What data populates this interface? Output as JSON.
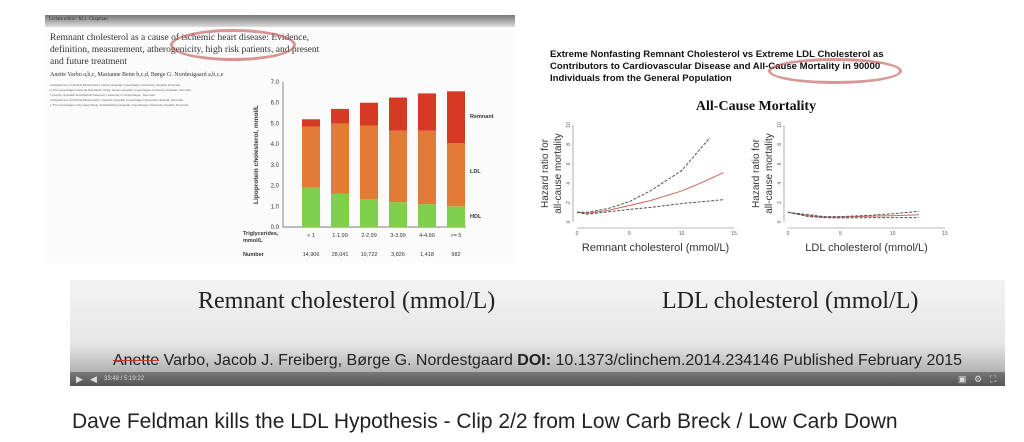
{
  "left_slide": {
    "editor": "Lictate editor: M.J. Chapman",
    "title_lines": [
      "Remnant cholesterol as a cause of ischemic heart disease: Evidence,",
      "definition, measurement, atherogenicity, high risk patients, and present",
      "and future treatment"
    ],
    "authors": "Anette Varbo a,b,c, Marianne Benn b,c,d, Børge G. Nordestgaard a,b,c,e",
    "affiliations": [
      "a Department of Clinical Biochemistry, Herlev Hospital, Copenhagen University Hospital, Denmark",
      "b The Copenhagen General Population Study, Herlev Hospital, Copenhagen University Hospital, Denmark",
      "c Faculty of Health and Medical Sciences, University of Copenhagen, Denmark",
      "d Department of Clinical Biochemistry, Gentofte Hospital, Copenhagen University Hospital, Denmark",
      "e The Copenhagen City Heart Study, Frederiksberg Hospital, Copenhagen University Hospital, Denmark"
    ],
    "highlight_color": "#c0504d"
  },
  "right_slide": {
    "title_lines": [
      "Extreme Nonfasting Remnant Cholesterol vs Extreme LDL Cholesterol as",
      "Contributors to Cardiovascular Disease and All-Cause Mortality in 90000",
      "Individuals from the General Population"
    ],
    "subtitle": "All-Cause Mortality"
  },
  "chart_data": [
    {
      "type": "bar",
      "stacked": true,
      "categories": [
        "< 1",
        "1-1.99",
        "2-2.99",
        "3-3.99",
        "4-4.99",
        ">= 5"
      ],
      "category_label": "Triglycerides, mmol/L",
      "counts_label": "Number",
      "counts": [
        "14,906",
        "28,041",
        "10,722",
        "3,826",
        "1,418",
        "982"
      ],
      "ylabel": "Lipoprotein cholesterol, mmol/L",
      "ylim": [
        0,
        7
      ],
      "yticks": [
        "0.0",
        "1.0",
        "2.0",
        "3.0",
        "4.0",
        "5.0",
        "6.0",
        "7.0"
      ],
      "series": [
        {
          "name": "HDL",
          "color": "#7ed04b",
          "values": [
            1.9,
            1.6,
            1.35,
            1.2,
            1.1,
            1.0
          ]
        },
        {
          "name": "LDL",
          "color": "#e27b35",
          "values": [
            2.95,
            3.4,
            3.55,
            3.45,
            3.55,
            3.05
          ]
        },
        {
          "name": "Remnant",
          "color": "#d63a24",
          "values": [
            0.35,
            0.7,
            1.1,
            1.6,
            1.8,
            2.5
          ]
        }
      ]
    },
    {
      "type": "line",
      "xlabel": "Remnant cholesterol (mmol/L)",
      "ylabel": "Hazard ratio for all-cause mortality",
      "xlim": [
        0,
        15
      ],
      "ylim": [
        0,
        10
      ],
      "xticks": [
        "0",
        "5",
        "10",
        "15"
      ],
      "yticks": [
        "0",
        "2",
        "4",
        "6",
        "8",
        "10"
      ],
      "series": [
        {
          "name": "estimate",
          "color": "#c96a5c",
          "x": [
            0,
            1,
            3,
            5,
            7,
            10,
            12,
            14
          ],
          "y": [
            1,
            0.9,
            1.2,
            1.7,
            2.2,
            3.2,
            4.1,
            5.1
          ]
        },
        {
          "name": "upper",
          "color": "#555",
          "x": [
            0,
            1,
            3,
            5,
            7,
            10,
            12.7
          ],
          "y": [
            1,
            1,
            1.4,
            2.1,
            3.2,
            5.3,
            8.7
          ]
        },
        {
          "name": "lower",
          "color": "#555",
          "x": [
            0,
            1,
            3,
            5,
            7,
            10,
            14
          ],
          "y": [
            1,
            0.8,
            1.05,
            1.3,
            1.5,
            1.9,
            2.3
          ]
        }
      ]
    },
    {
      "type": "line",
      "xlabel": "LDL cholesterol (mmol/L)",
      "ylabel": "Hazard ratio for all-cause mortality",
      "xlim": [
        0,
        15
      ],
      "ylim": [
        0,
        10
      ],
      "xticks": [
        "0",
        "5",
        "10",
        "15"
      ],
      "yticks": [
        "0",
        "2",
        "4",
        "6",
        "8",
        "10"
      ],
      "series": [
        {
          "name": "estimate",
          "color": "#c96a5c",
          "x": [
            0,
            2,
            3.5,
            5,
            8,
            10,
            12.5
          ],
          "y": [
            1,
            0.65,
            0.5,
            0.5,
            0.6,
            0.65,
            0.75
          ]
        },
        {
          "name": "upper",
          "color": "#555",
          "x": [
            0,
            2,
            3.5,
            5,
            8,
            10,
            12.5
          ],
          "y": [
            1,
            0.75,
            0.55,
            0.55,
            0.7,
            0.85,
            1.1
          ]
        },
        {
          "name": "lower",
          "color": "#555",
          "x": [
            0,
            2,
            3.5,
            5,
            8,
            10,
            12.5
          ],
          "y": [
            1,
            0.55,
            0.45,
            0.42,
            0.45,
            0.45,
            0.45
          ]
        }
      ]
    }
  ],
  "video": {
    "overlay_left": "Remnant cholesterol (mmol/L)",
    "overlay_right": "LDL cholesterol (mmol/L)",
    "caption_strike": "Anette",
    "caption_authors": " Varbo, Jacob J. Freiberg, Børge G. Nordestgaard ",
    "caption_doi_label": "DOI:",
    "caption_rest": " 10.1373/clinchem.2014.234146 Published February 2015",
    "time": "33:48 / 5:19:22"
  },
  "video_title": "Dave Feldman kills the LDL Hypothesis - Clip 2/2 from Low Carb Breck / Low Carb Down"
}
